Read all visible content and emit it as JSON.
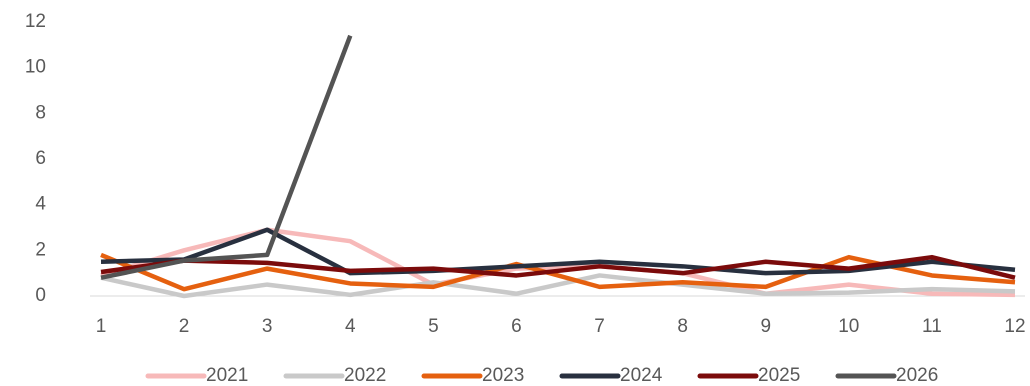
{
  "chart_data": {
    "type": "line",
    "categories": [
      "1",
      "2",
      "3",
      "4",
      "5",
      "6",
      "7",
      "8",
      "9",
      "10",
      "11",
      "12"
    ],
    "series": [
      {
        "name": "2021",
        "color": "#f7b9b9",
        "values": [
          0.9,
          2.0,
          2.9,
          2.4,
          0.5,
          1.2,
          1.3,
          1.0,
          0.1,
          0.5,
          0.1,
          0.05
        ]
      },
      {
        "name": "2022",
        "color": "#c9c9c9",
        "values": [
          0.8,
          0.0,
          0.5,
          0.05,
          0.6,
          0.1,
          0.9,
          0.5,
          0.1,
          0.15,
          0.3,
          0.2
        ]
      },
      {
        "name": "2023",
        "color": "#e5600f",
        "values": [
          1.8,
          0.3,
          1.2,
          0.55,
          0.4,
          1.4,
          0.4,
          0.6,
          0.4,
          1.7,
          0.9,
          0.6
        ]
      },
      {
        "name": "2024",
        "color": "#28303f",
        "values": [
          1.5,
          1.6,
          2.9,
          1.0,
          1.1,
          1.3,
          1.5,
          1.3,
          1.0,
          1.1,
          1.5,
          1.15
        ]
      },
      {
        "name": "2025",
        "color": "#7b0b0b",
        "values": [
          1.05,
          1.55,
          1.45,
          1.1,
          1.2,
          0.9,
          1.3,
          1.0,
          1.5,
          1.2,
          1.7,
          0.8
        ]
      },
      {
        "name": "2026",
        "color": "#545454",
        "values": [
          0.8,
          1.55,
          1.8,
          11.4,
          null,
          null,
          null,
          null,
          null,
          null,
          null,
          null
        ]
      }
    ],
    "ylim": [
      0,
      12
    ],
    "yticks": [
      0,
      2,
      4,
      6,
      8,
      10,
      12
    ],
    "grid": false,
    "legend": "bottom"
  }
}
